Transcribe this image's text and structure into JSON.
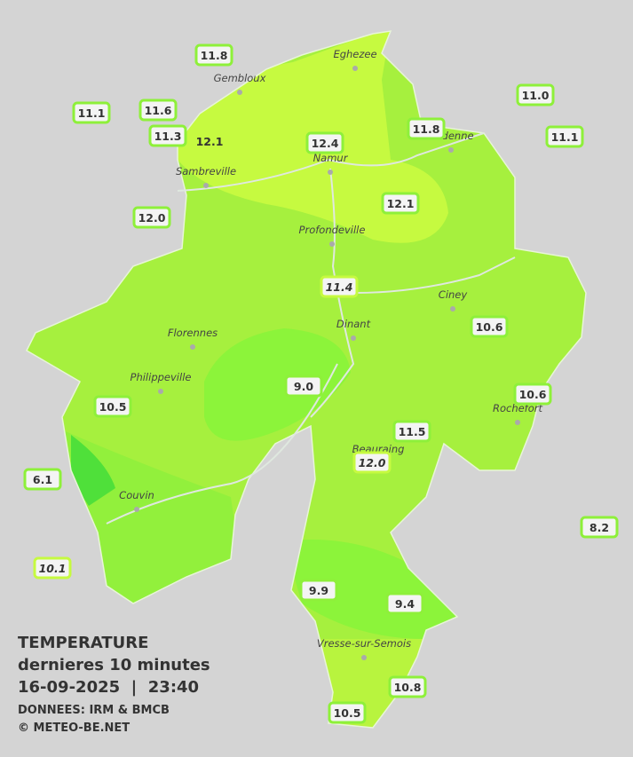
{
  "legend": {
    "title": "TEMPERATURE",
    "subtitle": "dernieres 10 minutes",
    "datetime": "16-09-2025  |  23:40",
    "source": "DONNEES: IRM & BMCB",
    "credit": "© METEO-BE.NET"
  },
  "cities": [
    "Eghezee",
    "Gembloux",
    "Andenne",
    "Namur",
    "Sambreville",
    "Profondeville",
    "Ciney",
    "Dinant",
    "Florennes",
    "Philippeville",
    "Rochefort",
    "Beauraing",
    "Couvin",
    "Vresse-sur-Semois"
  ],
  "stations": [
    "11.8",
    "11.1",
    "11.6",
    "11.3",
    "12.1",
    "12.4",
    "11.8",
    "11.0",
    "11.1",
    "12.0",
    "12.1",
    "11.4",
    "10.6",
    "9.0",
    "10.6",
    "10.5",
    "11.5",
    "12.0",
    "6.1",
    "8.2",
    "10.1",
    "9.9",
    "9.4",
    "10.8",
    "10.5"
  ]
}
